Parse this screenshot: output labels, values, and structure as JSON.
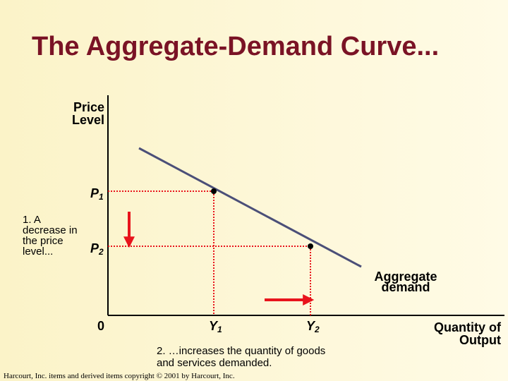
{
  "title": "The Aggregate-Demand Curve...",
  "y_axis_label": [
    "Price",
    "Level"
  ],
  "x_axis_label": [
    "Quantity of",
    "Output"
  ],
  "origin_label": "0",
  "price_levels": [
    {
      "letter": "P",
      "sub": "1"
    },
    {
      "letter": "P",
      "sub": "2"
    }
  ],
  "quantities": [
    {
      "letter": "Y",
      "sub": "1"
    },
    {
      "letter": "Y",
      "sub": "2"
    }
  ],
  "curve_label": [
    "Aggregate",
    "demand"
  ],
  "annotation_1": [
    "1. A",
    "decrease in",
    "the price",
    "level..."
  ],
  "annotation_2": [
    "2. …increases the quantity of goods",
    "and services demanded."
  ],
  "footer": "Harcourt, Inc. items and derived items copyright © 2001 by Harcourt, Inc."
}
